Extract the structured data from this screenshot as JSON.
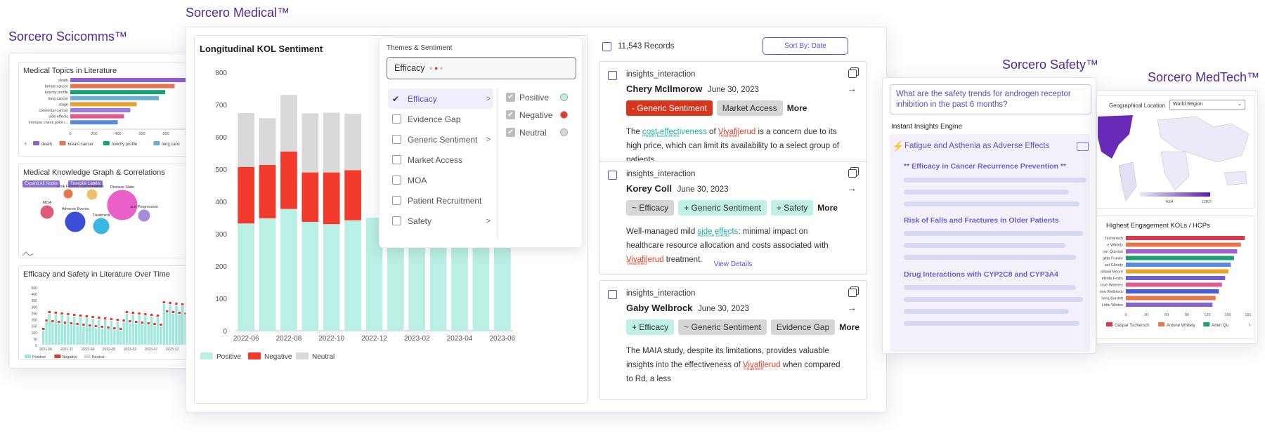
{
  "scicomms": {
    "brand": "Sorcero Scicomms™",
    "topics": {
      "title": "Medical Topics in Literature",
      "bars": [
        [
          "death",
          185
        ],
        [
          "breast cancer",
          165
        ],
        [
          "toxicity profile",
          150
        ],
        [
          "lung cancer",
          140
        ],
        [
          "stage",
          105
        ],
        [
          "colorectal cancer",
          95
        ],
        [
          "side effects",
          85
        ],
        [
          "immune check point i...",
          75
        ]
      ],
      "ticks": [
        "0",
        "200",
        "400",
        "600",
        "800",
        "1,000",
        "1,2"
      ],
      "legend": [
        "death",
        "breast cancer",
        "toxicity profile",
        "lung canc"
      ]
    },
    "graph": {
      "title": "Medical Knowledge Graph & Correlations",
      "btn1": "Expand All Nodes",
      "btn2": "Truncate Labels",
      "nodes": [
        "Risk Factors",
        "Comorbidities",
        "Disease State",
        "MOA",
        "Adverse Events",
        "Treatment",
        "ace Progression"
      ]
    },
    "time": {
      "title": "Efficacy and Safety in Literature Over Time",
      "yticks": [
        "500",
        "400",
        "350",
        "300",
        "250",
        "200",
        "150",
        "100",
        "50",
        "0"
      ],
      "xticks": [
        "2021-06",
        "2021-11",
        "2022-04",
        "2022-09",
        "2023-02",
        "2023-07",
        "2023-12",
        "2024"
      ],
      "legend": [
        "Positive",
        "Negative",
        "Neutral"
      ]
    }
  },
  "medical": {
    "brand": "Sorcero Medical™",
    "chart_title": "Longitudinal KOL Sentiment",
    "chart_data": {
      "type": "bar",
      "stacked": true,
      "categories": [
        "2022-06",
        "2022-07",
        "2022-08",
        "2022-09",
        "2022-10",
        "2022-11",
        "2022-12",
        "2023-01",
        "2023-02",
        "2023-03",
        "2023-04",
        "2023-05",
        "2023-06"
      ],
      "x_tick_labels": [
        "2022-06",
        "2022-08",
        "2022-10",
        "2022-12",
        "2023-02",
        "2023-04",
        "2023-06"
      ],
      "series": [
        {
          "name": "Positive",
          "color": "#b9efe5",
          "values": [
            332,
            348,
            377,
            337,
            330,
            342,
            350,
            340,
            290,
            340,
            305,
            340,
            340
          ]
        },
        {
          "name": "Negative",
          "color": "#f23b2d",
          "values": [
            175,
            165,
            178,
            153,
            160,
            155,
            0,
            0,
            40,
            0,
            15,
            0,
            0
          ]
        },
        {
          "name": "Neutral",
          "color": "#d9d9d9",
          "values": [
            167,
            145,
            175,
            183,
            185,
            175,
            0,
            0,
            0,
            0,
            0,
            0,
            0
          ]
        }
      ],
      "ylim": [
        0,
        800
      ],
      "yticks": [
        0,
        100,
        200,
        300,
        400,
        500,
        600,
        700,
        800
      ],
      "legend": "bottom-left"
    },
    "dropdown": {
      "label": "Themes & Sentiment",
      "value": "Efficacy",
      "themes": [
        {
          "label": "Efficacy",
          "checked": true,
          "arrow": ">"
        },
        {
          "label": "Evidence Gap",
          "checked": false,
          "arrow": ""
        },
        {
          "label": "Generic Sentiment",
          "checked": false,
          "arrow": ">"
        },
        {
          "label": "Market Access",
          "checked": false,
          "arrow": ""
        },
        {
          "label": "MOA",
          "checked": false,
          "arrow": ""
        },
        {
          "label": "Patient Recruitment",
          "checked": false,
          "arrow": ""
        },
        {
          "label": "Safety",
          "checked": false,
          "arrow": ">"
        }
      ],
      "sentiments": [
        {
          "label": "Positive",
          "color": "#b9efe5"
        },
        {
          "label": "Negative",
          "color": "#e23c2c"
        },
        {
          "label": "Neutral",
          "color": "#d9d9d9"
        }
      ]
    },
    "records": {
      "count": "11,543 Records",
      "sort": "Sort By: Date",
      "details": "View Details",
      "items": [
        {
          "type": "insights_interaction",
          "name": "Chery Mcllmorow",
          "date": "June 30, 2023",
          "tags": [
            [
              "- Generic Sentiment",
              "red"
            ],
            [
              "Market Access",
              "gray"
            ]
          ],
          "more": "More",
          "t1": "The ",
          "h1": "cost-effectiveness",
          "h1sub": "Health Economics",
          "t2": " of ",
          "h2": "Vivafilerud",
          "h2sub": "Treatment",
          "t3": " is a concern due to its high price, which can limit its availability to a select group of patients."
        },
        {
          "type": "insights_interaction",
          "name": "Korey Coll",
          "date": "June 30, 2023",
          "tags": [
            [
              "~ Efficacy",
              "gray"
            ],
            [
              "+ Generic Sentiment",
              "teal"
            ],
            [
              "+ Safety",
              "teal"
            ]
          ],
          "more": "More",
          "t1": "Well-managed mild ",
          "h1": "side effects",
          "h1sub": "Adverse Events",
          "t2": ": minimal impact on healthcare resource allocation and costs associated with ",
          "h2": "Vivafilerud",
          "h2sub": "Treatment",
          "t3": " treatment."
        },
        {
          "type": "insights_interaction",
          "name": "Gaby Welbrock",
          "date": "June 30, 2023",
          "tags": [
            [
              "+ Efficacy",
              "teal"
            ],
            [
              "~ Generic Sentiment",
              "gray"
            ],
            [
              "Evidence Gap",
              "gray"
            ]
          ],
          "more": "More",
          "t1": "The MAIA study, despite its limitations, provides valuable insights into the effectiveness of ",
          "h1": "Vivafilerud",
          "h1sub": "Treatment",
          "t2": " when compared to Rd, a less",
          "h2": "",
          "h2sub": "",
          "t3": ""
        }
      ]
    }
  },
  "safety": {
    "brand": "Sorcero Safety™",
    "question": "What are the safety trends for androgen receptor inhibition in the past 6 months?",
    "engine": "Instant Insights Engine",
    "headline": "Fatigue and Asthenia as Adverse Effects",
    "items": [
      "** Efficacy in Cancer Recurrence Prevention **",
      "Risk of Falls and Fractures in Older Patients",
      "Drug Interactions with CYP2C8 and CYP3A4"
    ]
  },
  "medtech": {
    "brand": "Sorcero MedTech™",
    "geo_label": "Geographical Location",
    "geo_value": "World Region",
    "scale": [
      "4004",
      "12607"
    ],
    "kol_title": "Highest Engagement KOLs / HCPs",
    "kols": [
      [
        "Tschiersch",
        188
      ],
      [
        "e Whitely",
        182
      ],
      [
        "ren Quinton",
        176
      ],
      [
        "gitta Franke",
        171
      ],
      [
        "ael Gloody",
        166
      ],
      [
        "olland Moore",
        162
      ],
      [
        "elinda Fears",
        157
      ],
      [
        "tave Wateers",
        152
      ],
      [
        "ova Welbrock",
        147
      ],
      [
        "lvina Burdett",
        142
      ],
      [
        "Little Whites",
        137
      ]
    ],
    "kol_ticks": [
      "0",
      "30",
      "60",
      "90",
      "120",
      "150",
      "191"
    ],
    "kol_legend": [
      "Gaspar Tschiersch",
      "Antone Whitely",
      "Arlen Qu"
    ]
  }
}
